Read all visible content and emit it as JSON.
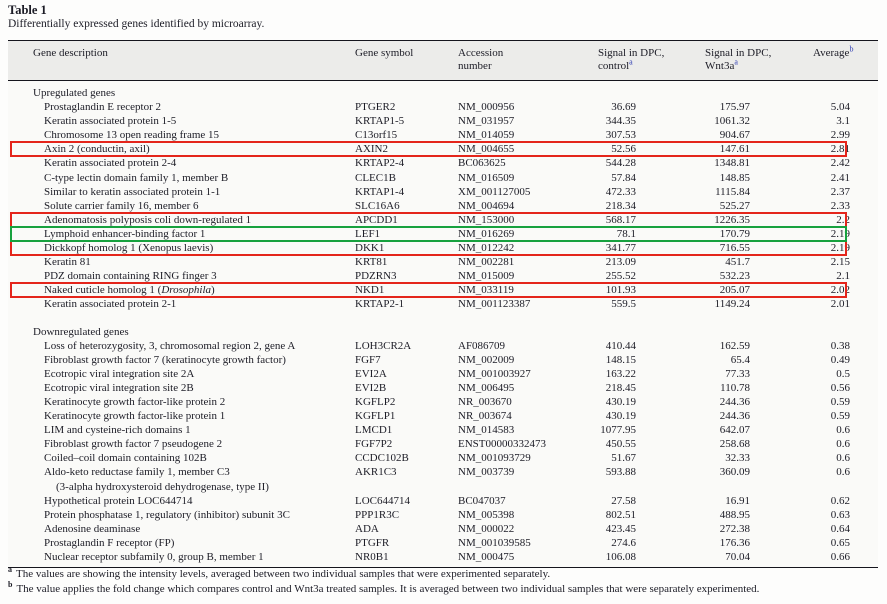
{
  "page": {
    "title": "Table 1",
    "caption": "Differentially expressed genes identified by microarray."
  },
  "colors": {
    "highlight_red": "#e4251b",
    "highlight_green": "#17a13e",
    "superscript_blue": "#2d3bb2"
  },
  "table": {
    "header": {
      "col_description": "Gene description",
      "col_symbol": "Gene symbol",
      "col_accession_1": "Accession",
      "col_accession_2": "number",
      "col_control_1": "Signal in DPC,",
      "col_control_2": "control",
      "col_control_sup": "a",
      "col_wnt_1": "Signal in DPC,",
      "col_wnt_2": "Wnt3a",
      "col_wnt_sup": "a",
      "col_average": "Average",
      "col_average_sup": "b"
    },
    "sections": [
      {
        "label": "Upregulated genes",
        "rows": [
          {
            "desc": "Prostaglandin E receptor 2",
            "symbol": "PTGER2",
            "acc": "NM_000956",
            "control": "36.69",
            "wnt3a": "175.97",
            "average": "5.04"
          },
          {
            "desc": "Keratin associated protein 1-5",
            "symbol": "KRTAP1-5",
            "acc": "NM_031957",
            "control": "344.35",
            "wnt3a": "1061.32",
            "average": "3.1"
          },
          {
            "desc": "Chromosome 13 open reading frame 15",
            "symbol": "C13orf15",
            "acc": "NM_014059",
            "control": "307.53",
            "wnt3a": "904.67",
            "average": "2.99"
          },
          {
            "desc": "Axin 2 (conductin, axil)",
            "symbol": "AXIN2",
            "acc": "NM_004655",
            "control": "52.56",
            "wnt3a": "147.61",
            "average": "2.81",
            "highlight": "red"
          },
          {
            "desc": "Keratin associated protein 2-4",
            "symbol": "KRTAP2-4",
            "acc": "BC063625",
            "control": "544.28",
            "wnt3a": "1348.81",
            "average": "2.42"
          },
          {
            "desc": "C-type lectin domain family 1, member B",
            "symbol": "CLEC1B",
            "acc": "NM_016509",
            "control": "57.84",
            "wnt3a": "148.85",
            "average": "2.41"
          },
          {
            "desc": "Similar to keratin associated protein 1-1",
            "symbol": "KRTAP1-4",
            "acc": "XM_001127005",
            "control": "472.33",
            "wnt3a": "1115.84",
            "average": "2.37"
          },
          {
            "desc": "Solute carrier family 16, member 6",
            "symbol": "SLC16A6",
            "acc": "NM_004694",
            "control": "218.34",
            "wnt3a": "525.27",
            "average": "2.33"
          },
          {
            "desc": "Adenomatosis polyposis coli down-regulated 1",
            "symbol": "APCDD1",
            "acc": "NM_153000",
            "control": "568.17",
            "wnt3a": "1226.35",
            "average": "2.2",
            "highlight": "red"
          },
          {
            "desc": "Lymphoid enhancer-binding factor 1",
            "symbol": "LEF1",
            "acc": "NM_016269",
            "control": "78.1",
            "wnt3a": "170.79",
            "average": "2.19",
            "highlight": "green"
          },
          {
            "desc": "Dickkopf homolog 1 (Xenopus laevis)",
            "symbol": "DKK1",
            "acc": "NM_012242",
            "control": "341.77",
            "wnt3a": "716.55",
            "average": "2.19",
            "highlight": "red"
          },
          {
            "desc": "Keratin 81",
            "symbol": "KRT81",
            "acc": "NM_002281",
            "control": "213.09",
            "wnt3a": "451.7",
            "average": "2.15"
          },
          {
            "desc": "PDZ domain containing RING finger 3",
            "symbol": "PDZRN3",
            "acc": "NM_015009",
            "control": "255.52",
            "wnt3a": "532.23",
            "average": "2.1"
          },
          {
            "desc_segments": [
              {
                "t": "Naked cuticle homolog 1 ("
              },
              {
                "t": "Drosophila",
                "italic": true
              },
              {
                "t": ")"
              }
            ],
            "symbol": "NKD1",
            "acc": "NM_033119",
            "control": "101.93",
            "wnt3a": "205.07",
            "average": "2.02",
            "highlight": "red"
          },
          {
            "desc": "Keratin associated protein 2-1",
            "symbol": "KRTAP2-1",
            "acc": "NM_001123387",
            "control": "559.5",
            "wnt3a": "1149.24",
            "average": "2.01"
          }
        ]
      },
      {
        "label": "Downregulated genes",
        "rows": [
          {
            "desc": "Loss of heterozygosity, 3, chromosomal region 2, gene A",
            "symbol": "LOH3CR2A",
            "acc": "AF086709",
            "control": "410.44",
            "wnt3a": "162.59",
            "average": "0.38"
          },
          {
            "desc": "Fibroblast growth factor 7 (keratinocyte growth factor)",
            "symbol": "FGF7",
            "acc": "NM_002009",
            "control": "148.15",
            "wnt3a": "65.4",
            "average": "0.49"
          },
          {
            "desc": "Ecotropic viral integration site 2A",
            "symbol": "EVI2A",
            "acc": "NM_001003927",
            "control": "163.22",
            "wnt3a": "77.33",
            "average": "0.5"
          },
          {
            "desc": "Ecotropic viral integration site 2B",
            "symbol": "EVI2B",
            "acc": "NM_006495",
            "control": "218.45",
            "wnt3a": "110.78",
            "average": "0.56"
          },
          {
            "desc": "Keratinocyte growth factor-like protein 2",
            "symbol": "KGFLP2",
            "acc": "NR_003670",
            "control": "430.19",
            "wnt3a": "244.36",
            "average": "0.59"
          },
          {
            "desc": "Keratinocyte growth factor-like protein 1",
            "symbol": "KGFLP1",
            "acc": "NR_003674",
            "control": "430.19",
            "wnt3a": "244.36",
            "average": "0.59"
          },
          {
            "desc": "LIM and cysteine-rich domains 1",
            "symbol": "LMCD1",
            "acc": "NM_014583",
            "control": "1077.95",
            "wnt3a": "642.07",
            "average": "0.6"
          },
          {
            "desc": "Fibroblast growth factor 7 pseudogene 2",
            "symbol": "FGF7P2",
            "acc": "ENST00000332473",
            "control": "450.55",
            "wnt3a": "258.68",
            "average": "0.6"
          },
          {
            "desc": "Coiled–coil domain containing 102B",
            "symbol": "CCDC102B",
            "acc": "NM_001093729",
            "control": "51.67",
            "wnt3a": "32.33",
            "average": "0.6"
          },
          {
            "desc": "Aldo-keto reductase family 1, member C3",
            "desc_line2": "(3-alpha hydroxysteroid dehydrogenase, type II)",
            "symbol": "AKR1C3",
            "acc": "NM_003739",
            "control": "593.88",
            "wnt3a": "360.09",
            "average": "0.6"
          },
          {
            "desc": "Hypothetical protein LOC644714",
            "symbol": "LOC644714",
            "acc": "BC047037",
            "control": "27.58",
            "wnt3a": "16.91",
            "average": "0.62"
          },
          {
            "desc": "Protein phosphatase 1, regulatory (inhibitor) subunit 3C",
            "symbol": "PPP1R3C",
            "acc": "NM_005398",
            "control": "802.51",
            "wnt3a": "488.95",
            "average": "0.63"
          },
          {
            "desc": "Adenosine deaminase",
            "symbol": "ADA",
            "acc": "NM_000022",
            "control": "423.45",
            "wnt3a": "272.38",
            "average": "0.64"
          },
          {
            "desc": "Prostaglandin F receptor (FP)",
            "symbol": "PTGFR",
            "acc": "NM_001039585",
            "control": "274.6",
            "wnt3a": "176.36",
            "average": "0.65"
          },
          {
            "desc": "Nuclear receptor subfamily 0, group B, member 1",
            "symbol": "NR0B1",
            "acc": "NM_000475",
            "control": "106.08",
            "wnt3a": "70.04",
            "average": "0.66"
          }
        ]
      }
    ]
  },
  "footnotes": [
    {
      "marker": "a",
      "text": "The values are showing the intensity levels, averaged between two individual samples that were experimented separately."
    },
    {
      "marker": "b",
      "text": "The value applies the fold change which compares control and Wnt3a treated samples. It is averaged between two individual samples that were separately experimented."
    }
  ]
}
